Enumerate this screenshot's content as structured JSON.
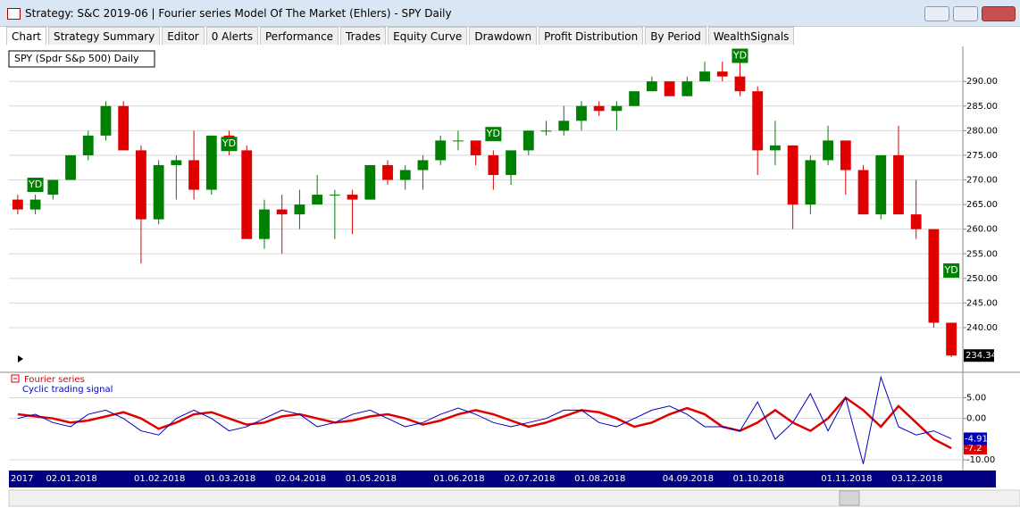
{
  "window": {
    "title": "Strategy: S&C 2019-06 | Fourier series Model Of The Market (Ehlers) - SPY Daily",
    "tabs": [
      "Chart",
      "Strategy Summary",
      "Editor",
      "0 Alerts",
      "Performance",
      "Trades",
      "Equity Curve",
      "Drawdown",
      "Profit Distribution",
      "By Period",
      "WealthSignals"
    ]
  },
  "chart_data": [
    {
      "type": "candlestick",
      "title": "SPY (Spdr S&p 500) Daily",
      "categories": [
        "2017",
        null,
        "02.01.2018",
        null,
        null,
        null,
        null,
        "01.02.2018",
        null,
        null,
        null,
        "01.03.2018",
        null,
        null,
        null,
        "02.04.2018",
        null,
        null,
        null,
        "01.05.2018",
        null,
        null,
        null,
        null,
        "01.06.2018",
        null,
        null,
        null,
        "02.07.2018",
        null,
        null,
        null,
        "01.08.2018",
        null,
        null,
        null,
        null,
        "04.09.2018",
        null,
        null,
        null,
        "01.10.2018",
        null,
        null,
        null,
        null,
        "01.11.2018",
        null,
        null,
        null,
        "03.12.2018",
        null,
        null,
        null
      ],
      "open": [
        266,
        264,
        267,
        270,
        275,
        279,
        285,
        276,
        262,
        273,
        274,
        268,
        279,
        276,
        258,
        264,
        263,
        265,
        267,
        267,
        266,
        273,
        270,
        272,
        274,
        278,
        278,
        275,
        271,
        276,
        280,
        280,
        282,
        285,
        284,
        285,
        288,
        290,
        287,
        290,
        292,
        291,
        288,
        276,
        277,
        265,
        274,
        278,
        272,
        263,
        275,
        263,
        260,
        241
      ],
      "high": [
        267,
        267,
        270,
        275,
        280,
        286,
        286,
        277,
        274,
        275,
        280,
        279,
        280,
        277,
        266,
        267,
        268,
        271,
        268,
        268,
        273,
        274,
        273,
        275,
        279,
        280,
        278,
        276,
        276,
        280,
        282,
        285,
        286,
        286,
        286,
        288,
        291,
        290,
        291,
        294,
        294,
        294,
        289,
        282,
        277,
        275,
        281,
        278,
        273,
        275,
        281,
        270,
        260,
        241
      ],
      "low": [
        263,
        263,
        266,
        270,
        274,
        278,
        276,
        253,
        261,
        266,
        266,
        267,
        275,
        258,
        256,
        255,
        260,
        265,
        258,
        259,
        266,
        269,
        268,
        268,
        273,
        276,
        273,
        268,
        269,
        275,
        279,
        279,
        280,
        283,
        280,
        285,
        288,
        287,
        287,
        290,
        290,
        287,
        271,
        273,
        260,
        263,
        273,
        267,
        263,
        262,
        263,
        258,
        240,
        234
      ],
      "close": [
        264,
        266,
        270,
        275,
        279,
        285,
        276,
        262,
        273,
        274,
        268,
        279,
        276,
        258,
        264,
        263,
        265,
        267,
        267,
        266,
        273,
        270,
        272,
        274,
        278,
        278,
        275,
        271,
        276,
        280,
        280,
        282,
        285,
        284,
        285,
        288,
        290,
        287,
        290,
        292,
        291,
        288,
        276,
        277,
        265,
        274,
        278,
        272,
        263,
        275,
        263,
        260,
        241,
        234.34
      ],
      "up_color": "#008000",
      "down_color": "#e00000",
      "signals": [
        {
          "x": 1,
          "y": 269,
          "label": "YD"
        },
        {
          "x": 12,
          "y": 277.3,
          "label": "YD"
        },
        {
          "x": 27,
          "y": 279.3,
          "label": "YD"
        },
        {
          "x": 41,
          "y": 295.2,
          "label": "YD"
        },
        {
          "x": 53,
          "y": 251.6,
          "label": "YD"
        }
      ],
      "ylim": [
        231.3,
        297.1
      ],
      "yticks": [
        {
          "value": 240,
          "label": "240.00"
        },
        {
          "value": 245,
          "label": "245.00"
        },
        {
          "value": 250,
          "label": "250.00"
        },
        {
          "value": 255,
          "label": "255.00"
        },
        {
          "value": 260,
          "label": "260.00"
        },
        {
          "value": 265,
          "label": "265.00"
        },
        {
          "value": 270,
          "label": "270.00"
        },
        {
          "value": 275,
          "label": "275.00"
        },
        {
          "value": 280,
          "label": "280.00"
        },
        {
          "value": 285,
          "label": "285.00"
        },
        {
          "value": 290,
          "label": "290.00"
        }
      ],
      "grid": true
    },
    {
      "type": "line",
      "series": [
        {
          "name": "Fourier series",
          "color": "#e00000",
          "values": [
            1,
            0.5,
            0,
            -1,
            -0.5,
            0.5,
            1.5,
            0,
            -2.5,
            -1,
            1,
            1.5,
            0,
            -1.5,
            -1,
            0.5,
            1,
            0,
            -1,
            -0.5,
            0.5,
            1,
            0,
            -1.5,
            -0.5,
            1,
            2,
            1,
            -0.5,
            -2,
            -1,
            0.5,
            2,
            1.5,
            0,
            -2,
            -1,
            1,
            2.5,
            1,
            -2,
            -3,
            -1,
            2,
            -1,
            -3,
            0,
            5,
            2,
            -2,
            3,
            -1,
            -5,
            -7.2
          ]
        },
        {
          "name": "Cyclic trading signal",
          "color": "#0000c0",
          "values": [
            0,
            1,
            -1,
            -2,
            1,
            2,
            0,
            -3,
            -4,
            0,
            2,
            0,
            -3,
            -2,
            0,
            2,
            1,
            -2,
            -1,
            1,
            2,
            0,
            -2,
            -1,
            1,
            2.5,
            1,
            -1,
            -2,
            -1,
            0,
            2,
            2,
            -1,
            -2,
            0,
            2,
            3,
            1,
            -2,
            -2,
            -3,
            4,
            -5,
            -1,
            6,
            -3,
            5,
            -11,
            10,
            -2,
            -4,
            -3,
            -4.91
          ]
        }
      ],
      "ylim": [
        -11.5,
        10.5
      ],
      "yticks": [
        {
          "value": 5,
          "label": "5.00"
        },
        {
          "value": 0,
          "label": "0.00"
        },
        {
          "value": -10,
          "label": "-10.00"
        }
      ],
      "grid": true
    }
  ]
}
